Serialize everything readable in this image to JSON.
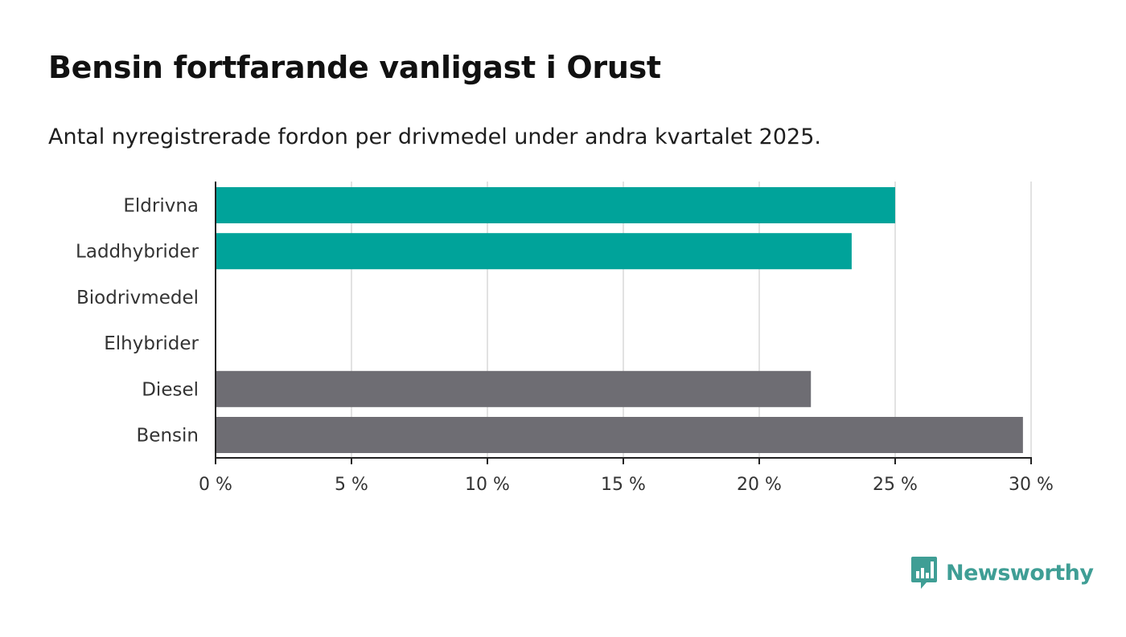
{
  "title": "Bensin fortfarande vanligast i Orust",
  "subtitle": "Antal nyregistrerade fordon per drivmedel under andra kvartalet 2025.",
  "logo": {
    "name": "Newsworthy",
    "icon": "newsworthy-bar-chart-icon",
    "color": "#3f9e95"
  },
  "colors": {
    "electrified": "#00a39a",
    "fossil": "#6e6d73",
    "grid": "#d9d9d9",
    "axis": "#222222"
  },
  "chart_data": {
    "type": "bar",
    "orientation": "horizontal",
    "categories": [
      "Eldrivna",
      "Laddhybrider",
      "Biodrivmedel",
      "Elhybrider",
      "Diesel",
      "Bensin"
    ],
    "values": [
      25.0,
      23.4,
      0,
      0,
      21.9,
      29.7
    ],
    "bar_colors": [
      "#00a39a",
      "#00a39a",
      "#00a39a",
      "#00a39a",
      "#6e6d73",
      "#6e6d73"
    ],
    "xlim": [
      0,
      30
    ],
    "xticks": [
      0,
      5,
      10,
      15,
      20,
      25,
      30
    ],
    "xtick_labels": [
      "0 %",
      "5 %",
      "10 %",
      "15 %",
      "20 %",
      "25 %",
      "30 %"
    ],
    "xlabel": "",
    "ylabel": "",
    "grid": true,
    "legend": "none"
  }
}
